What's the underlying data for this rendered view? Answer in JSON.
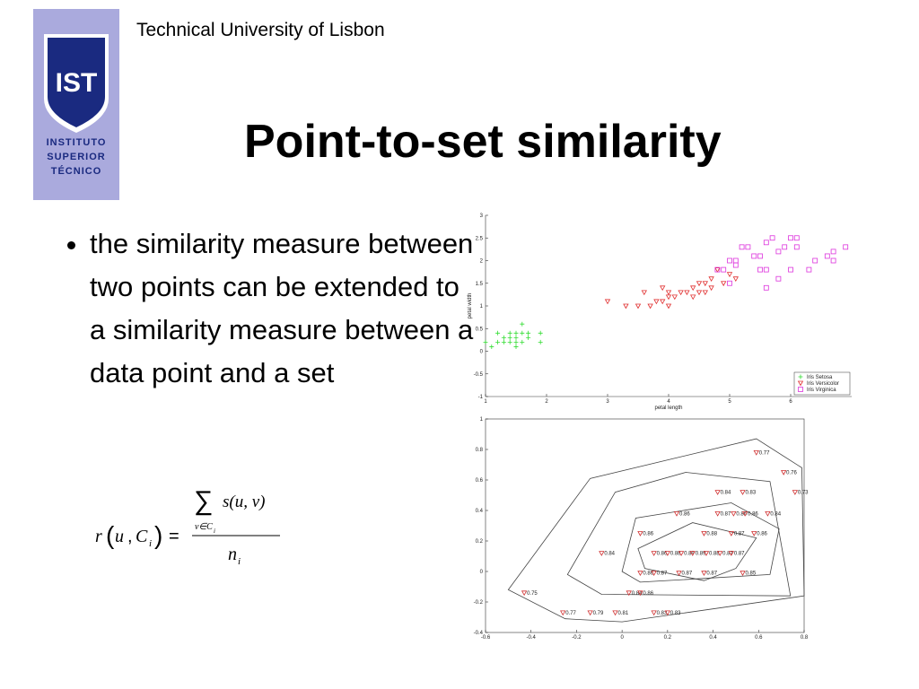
{
  "header": {
    "institution": "Technical University of Lisbon",
    "logo": {
      "mark": "IST",
      "lines": [
        "INSTITUTO",
        "SUPERIOR",
        "TÉCNICO"
      ]
    }
  },
  "title": "Point-to-set similarity",
  "bullets": [
    "the similarity measure between two points can be extended to a similarity measure between a data point and a set"
  ],
  "formula": {
    "r": "r",
    "open": "(",
    "u": "u",
    "comma": ",",
    "C": "C",
    "C_sub": "i",
    "close": ")",
    "eq": "=",
    "sum": "∑",
    "numerator": "s(u, v)",
    "sum_index": "v∈C",
    "sum_index_sub": "i",
    "denominator": "n",
    "denominator_sub": "i"
  },
  "chart_data": [
    {
      "type": "scatter",
      "xlabel": "petal length",
      "ylabel": "petal width",
      "xlim": [
        1,
        7
      ],
      "xticks": [
        1,
        2,
        3,
        4,
        5,
        6
      ],
      "ylim": [
        -1,
        3
      ],
      "yticks": [
        -1,
        -0.5,
        0,
        0.5,
        1,
        1.5,
        2,
        2.5,
        3
      ],
      "legend": "lower-right",
      "series": [
        {
          "name": "Iris Setosa",
          "color": "#33dd33",
          "marker": "plus",
          "x": [
            1.4,
            1.3,
            1.5,
            1.4,
            1.7,
            1.5,
            1.6,
            1.1,
            1.2,
            1.5,
            1.6,
            1.9,
            1.9,
            1.0,
            1.3,
            1.4,
            1.7,
            1.5,
            1.6,
            1.2
          ],
          "values": [
            0.2,
            0.2,
            0.2,
            0.3,
            0.4,
            0.4,
            0.2,
            0.1,
            0.2,
            0.1,
            0.6,
            0.4,
            0.2,
            0.2,
            0.3,
            0.4,
            0.3,
            0.3,
            0.4,
            0.4
          ]
        },
        {
          "name": "Iris Versicolor",
          "color": "#e03030",
          "marker": "triangle-down",
          "x": [
            3.0,
            3.3,
            3.5,
            3.7,
            3.9,
            4.0,
            4.0,
            4.1,
            4.2,
            4.4,
            4.5,
            4.6,
            4.7,
            4.5,
            4.8,
            4.9,
            5.0,
            5.1,
            4.3,
            4.4,
            3.8,
            4.7,
            3.6,
            4.6,
            3.9,
            4.0
          ],
          "values": [
            1.1,
            1.0,
            1.0,
            1.0,
            1.1,
            1.0,
            1.3,
            1.2,
            1.3,
            1.4,
            1.5,
            1.3,
            1.4,
            1.3,
            1.8,
            1.5,
            1.7,
            1.6,
            1.3,
            1.2,
            1.1,
            1.6,
            1.3,
            1.5,
            1.4,
            1.2
          ]
        },
        {
          "name": "Iris Virginica",
          "color": "#dd33dd",
          "marker": "square",
          "x": [
            5.0,
            5.1,
            5.3,
            5.5,
            5.6,
            5.7,
            5.8,
            6.0,
            6.1,
            6.3,
            6.6,
            6.7,
            6.9,
            5.9,
            5.6,
            4.8,
            4.9,
            5.2,
            5.4,
            6.1,
            6.7,
            5.8,
            5.6,
            6.4,
            5.0,
            5.1,
            5.5,
            6.0
          ],
          "values": [
            1.5,
            2.0,
            2.3,
            2.1,
            2.4,
            2.5,
            2.2,
            2.5,
            2.5,
            1.8,
            2.1,
            2.2,
            2.3,
            2.3,
            1.8,
            1.8,
            1.8,
            2.3,
            2.1,
            2.3,
            2.0,
            1.6,
            1.4,
            2.0,
            2.0,
            1.9,
            1.8,
            1.8
          ]
        }
      ]
    },
    {
      "type": "labeled-scatter",
      "xlim": [
        -0.6,
        0.8
      ],
      "xticks": [
        -0.6,
        -0.4,
        -0.2,
        0,
        0.2,
        0.4,
        0.6,
        0.8
      ],
      "ylim": [
        -0.4,
        1
      ],
      "yticks": [
        -0.4,
        -0.2,
        0,
        0.2,
        0.4,
        0.6,
        0.8,
        1
      ],
      "color": "#d03030",
      "contour_color": "#444444",
      "x": [
        0.59,
        0.71,
        0.76,
        0.42,
        0.53,
        0.24,
        0.42,
        0.49,
        0.54,
        0.64,
        0.08,
        0.36,
        0.48,
        0.58,
        -0.09,
        0.14,
        0.2,
        0.26,
        0.31,
        0.37,
        0.43,
        0.48,
        0.08,
        0.14,
        0.25,
        0.36,
        0.53,
        -0.43,
        0.03,
        0.08,
        -0.26,
        -0.14,
        -0.03,
        0.14,
        0.2
      ],
      "values": [
        0.78,
        0.65,
        0.52,
        0.52,
        0.52,
        0.38,
        0.38,
        0.38,
        0.38,
        0.38,
        0.25,
        0.25,
        0.25,
        0.25,
        0.12,
        0.12,
        0.12,
        0.12,
        0.12,
        0.12,
        0.12,
        0.12,
        -0.01,
        -0.01,
        -0.01,
        -0.01,
        -0.01,
        -0.14,
        -0.14,
        -0.14,
        -0.27,
        -0.27,
        -0.27,
        -0.27,
        -0.27
      ],
      "labels": [
        0.77,
        0.76,
        0.73,
        0.84,
        0.83,
        0.86,
        0.87,
        0.86,
        0.86,
        0.84,
        0.86,
        0.88,
        0.87,
        0.86,
        0.84,
        0.86,
        0.88,
        0.89,
        0.89,
        0.88,
        0.87,
        0.87,
        0.86,
        0.87,
        0.87,
        0.87,
        0.85,
        0.75,
        0.84,
        0.86,
        0.77,
        0.79,
        0.81,
        0.83,
        0.83
      ],
      "contours": [
        {
          "x": [
            -0.5,
            -0.14,
            0.59,
            0.79,
            0.8,
            0.0,
            -0.25
          ],
          "y": [
            -0.12,
            0.61,
            0.87,
            0.68,
            -0.16,
            -0.33,
            -0.31
          ]
        },
        {
          "x": [
            -0.24,
            -0.03,
            0.28,
            0.65,
            0.74,
            -0.09
          ],
          "y": [
            -0.02,
            0.52,
            0.65,
            0.59,
            -0.16,
            -0.15
          ]
        },
        {
          "x": [
            0.0,
            0.06,
            0.48,
            0.69,
            0.65,
            0.08
          ],
          "y": [
            0.0,
            0.35,
            0.45,
            0.28,
            -0.02,
            -0.07
          ]
        },
        {
          "x": [
            0.07,
            0.31,
            0.59,
            0.5,
            0.36,
            0.1
          ],
          "y": [
            0.15,
            0.32,
            0.22,
            0.02,
            -0.06,
            0.02
          ]
        }
      ]
    }
  ]
}
